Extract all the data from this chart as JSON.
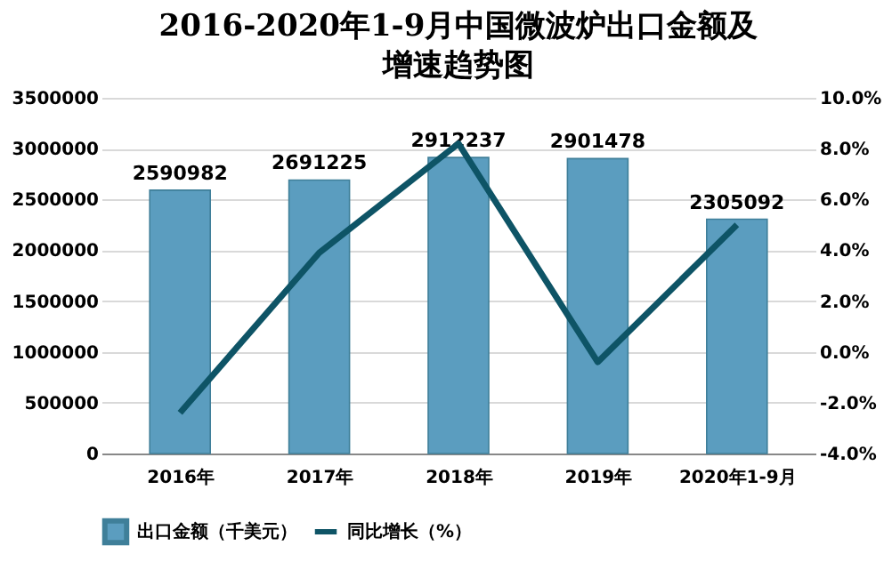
{
  "chart_data": {
    "type": "bar",
    "title": "2016-2020年1-9月中国微波炉出口金额及增速趋势图",
    "categories": [
      "2016年",
      "2017年",
      "2018年",
      "2019年",
      "2020年1-9月"
    ],
    "series": [
      {
        "name": "出口金额（千美元）",
        "color": "#5b9dbf",
        "values": [
          2590982,
          2691225,
          2912237,
          2901478,
          2305092
        ],
        "value_labels": [
          "2590982",
          "2691225",
          "2912237",
          "2901478",
          "2305092"
        ]
      },
      {
        "name": "同比增长（%）",
        "type": "line",
        "axis": "y2",
        "color": "#0e5466",
        "values": [
          -2.4,
          3.9,
          8.2,
          -0.4,
          5.0
        ]
      }
    ],
    "ylim": [
      0,
      3500000
    ],
    "yticks": [
      0,
      500000,
      1000000,
      1500000,
      2000000,
      2500000,
      3000000,
      3500000
    ],
    "y2lim": [
      -4,
      10
    ],
    "y2ticks": [
      {
        "value": -4,
        "label": "-4.0%"
      },
      {
        "value": -2,
        "label": "-2.0%"
      },
      {
        "value": 0,
        "label": "0.0%"
      },
      {
        "value": 2,
        "label": "2.0%"
      },
      {
        "value": 4,
        "label": "4.0%"
      },
      {
        "value": 6,
        "label": "6.0%"
      },
      {
        "value": 8,
        "label": "8.0%"
      },
      {
        "value": 10,
        "label": "10.0%"
      }
    ],
    "grid": "y",
    "legend": "bottom"
  }
}
